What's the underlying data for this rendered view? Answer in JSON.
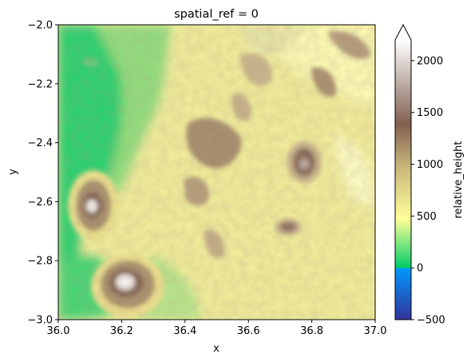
{
  "chart_data": {
    "type": "heatmap",
    "title": "spatial_ref = 0",
    "xlabel": "x",
    "ylabel": "y",
    "xlim": [
      36.0,
      37.0
    ],
    "ylim": [
      -3.0,
      -2.0
    ],
    "x_ticks": [
      36.0,
      36.2,
      36.4,
      36.6,
      36.8,
      37.0
    ],
    "x_tick_labels": [
      "36.0",
      "36.2",
      "36.4",
      "36.6",
      "36.8",
      "37.0"
    ],
    "y_ticks": [
      -2.0,
      -2.2,
      -2.4,
      -2.6,
      -2.8,
      -3.0
    ],
    "y_tick_labels": [
      "−2.0",
      "−2.2",
      "−2.4",
      "−2.6",
      "−2.8",
      "−3.0"
    ],
    "colorbar": {
      "label": "relative_height",
      "range": [
        -500,
        2200
      ],
      "extend": "max",
      "ticks": [
        -500,
        0,
        500,
        1000,
        1500,
        2000
      ],
      "tick_labels": [
        "−500",
        "0",
        "500",
        "1000",
        "1500",
        "2000"
      ],
      "colormap": "terrain",
      "colors": [
        "#333399",
        "#0099ff",
        "#00cc66",
        "#ffff99",
        "#806050",
        "#ffffff"
      ]
    },
    "features": [
      {
        "kind": "peak",
        "x": 36.22,
        "y": -2.89,
        "value": 2200
      },
      {
        "kind": "peak",
        "x": 36.11,
        "y": -2.61,
        "value": 1900
      },
      {
        "kind": "peak",
        "x": 36.77,
        "y": -2.48,
        "value": 1550
      },
      {
        "kind": "peak",
        "x": 36.72,
        "y": -2.7,
        "value": 1450
      },
      {
        "kind": "ridge",
        "x": 36.52,
        "y": -2.4,
        "value": 1350
      },
      {
        "kind": "ridge",
        "x": 36.82,
        "y": -2.1,
        "value": 1450
      },
      {
        "kind": "lowland",
        "x": 36.06,
        "y": -2.3,
        "value": 100
      }
    ]
  }
}
